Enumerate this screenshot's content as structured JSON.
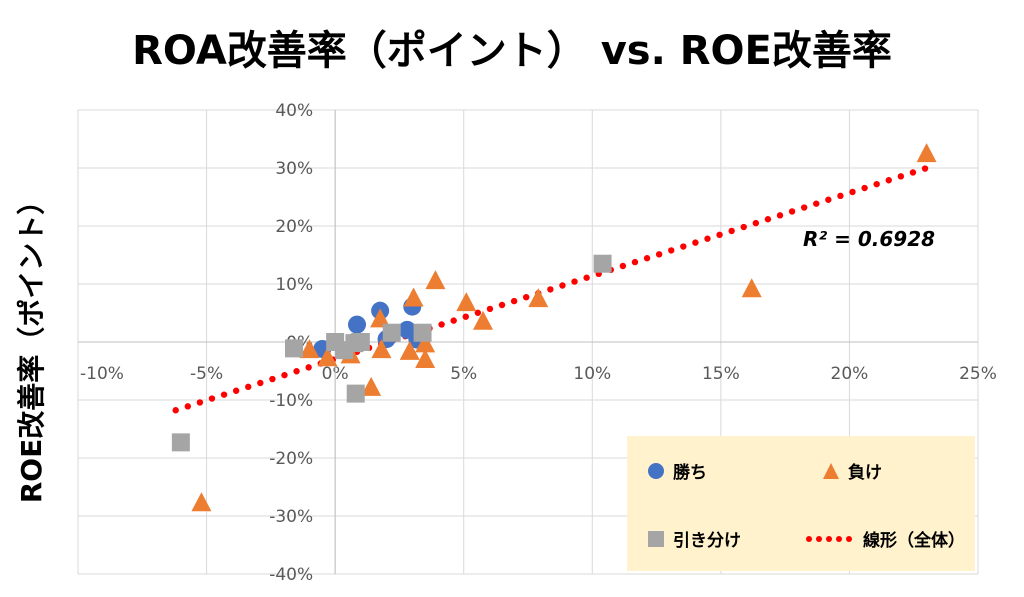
{
  "chart_data": {
    "type": "scatter",
    "title": "ROA改善率（ポイント） vs. ROE改善率",
    "xlabel": "",
    "ylabel": "ROE改善率（ポイント）",
    "xlim": [
      -10,
      25
    ],
    "ylim": [
      -40,
      40
    ],
    "xticks": [
      "-10%",
      "-5%",
      "0%",
      "5%",
      "10%",
      "15%",
      "20%",
      "25%"
    ],
    "yticks": [
      "40%",
      "30%",
      "20%",
      "10%",
      "0%",
      "-10%",
      "-20%",
      "-30%",
      "-40%"
    ],
    "grid": true,
    "legend_position": "bottom-right",
    "series": [
      {
        "name": "勝ち",
        "marker": "circle",
        "color": "#4472c4",
        "points": [
          [
            0.85,
            3.0
          ],
          [
            1.75,
            5.4
          ],
          [
            3.0,
            6.1
          ],
          [
            2.8,
            2.1
          ],
          [
            -0.5,
            -1.2
          ],
          [
            3.2,
            0.4
          ],
          [
            2.0,
            0.5
          ],
          [
            0.8,
            0.1
          ]
        ]
      },
      {
        "name": "負け",
        "marker": "triangle",
        "color": "#ed7d31",
        "points": [
          [
            3.9,
            10.5
          ],
          [
            3.05,
            7.5
          ],
          [
            1.75,
            3.9
          ],
          [
            5.1,
            6.7
          ],
          [
            5.75,
            3.5
          ],
          [
            -1.0,
            -1.4
          ],
          [
            -0.3,
            -2.8
          ],
          [
            0.6,
            -2.3
          ],
          [
            1.8,
            -1.4
          ],
          [
            2.9,
            -1.7
          ],
          [
            3.5,
            -0.4
          ],
          [
            3.5,
            -3.1
          ],
          [
            1.4,
            -7.9
          ],
          [
            7.9,
            7.4
          ],
          [
            16.2,
            9.1
          ],
          [
            23.0,
            32.4
          ],
          [
            -5.2,
            -27.8
          ]
        ]
      },
      {
        "name": "引き分け",
        "marker": "square",
        "color": "#a5a5a5",
        "points": [
          [
            -1.6,
            -1.1
          ],
          [
            0.0,
            0.0
          ],
          [
            0.75,
            -0.2
          ],
          [
            0.35,
            -1.4
          ],
          [
            1.0,
            0.0
          ],
          [
            0.8,
            -8.9
          ],
          [
            2.2,
            1.6
          ],
          [
            3.4,
            1.6
          ],
          [
            -6.0,
            -17.3
          ],
          [
            10.4,
            13.5
          ]
        ]
      }
    ],
    "trendline": {
      "name": "線形（全体）",
      "color": "#ff0000",
      "slope": 1.43,
      "intercept": -2.9,
      "x_range": [
        -6.2,
        23.0
      ],
      "r2_label": "R² = 0.6928"
    }
  }
}
